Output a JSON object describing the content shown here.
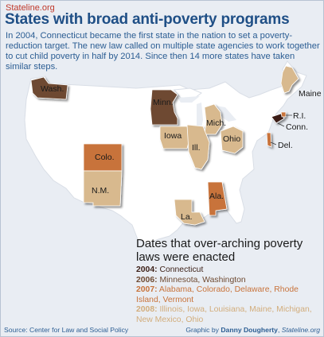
{
  "header": {
    "site": "Stateline.org",
    "title": "States with broad anti-poverty programs",
    "intro": "In 2004, Connecticut became the first state in the nation to set a poverty-reduction target. The new law called on multiple state agencies to work together to cut child poverty in half by 2014. Since then 14 more states have taken similar steps."
  },
  "colors": {
    "background": "#e9edf3",
    "us_fill": "#ffffff",
    "title": "#1f4f86",
    "site": "#c0392b",
    "y2004": "#3b1f16",
    "y2006": "#6e4a32",
    "y2007": "#c8733b",
    "y2008": "#d8b98e"
  },
  "states": {
    "wash": "Wash.",
    "minn": "Minn.",
    "mich": "Mich.",
    "maine": "Maine",
    "ri": "R.I.",
    "conn": "Conn.",
    "del": "Del.",
    "iowa": "Iowa",
    "ill": "Ill.",
    "ohio": "Ohio",
    "colo": "Colo.",
    "nm": "N.M.",
    "ala": "Ala.",
    "la": "La."
  },
  "legend": {
    "title": "Dates that over-arching poverty laws were enacted",
    "rows": [
      {
        "year": "2004:",
        "states": "Connecticut"
      },
      {
        "year": "2006:",
        "states": "Minnesota, Washington"
      },
      {
        "year": "2007:",
        "states": "Alabama, Colorado, Delaware, Rhode Island, Vermont"
      },
      {
        "year": "2008:",
        "states": "Illinois, Iowa, Louisiana, Maine, Michigan, New Mexico, Ohio"
      }
    ]
  },
  "footer": {
    "source": "Source: Center for Law and Social Policy",
    "graphic_prefix": "Graphic by ",
    "author": "Danny Dougherty",
    "sep": ", ",
    "outlet": "Stateline.org"
  }
}
